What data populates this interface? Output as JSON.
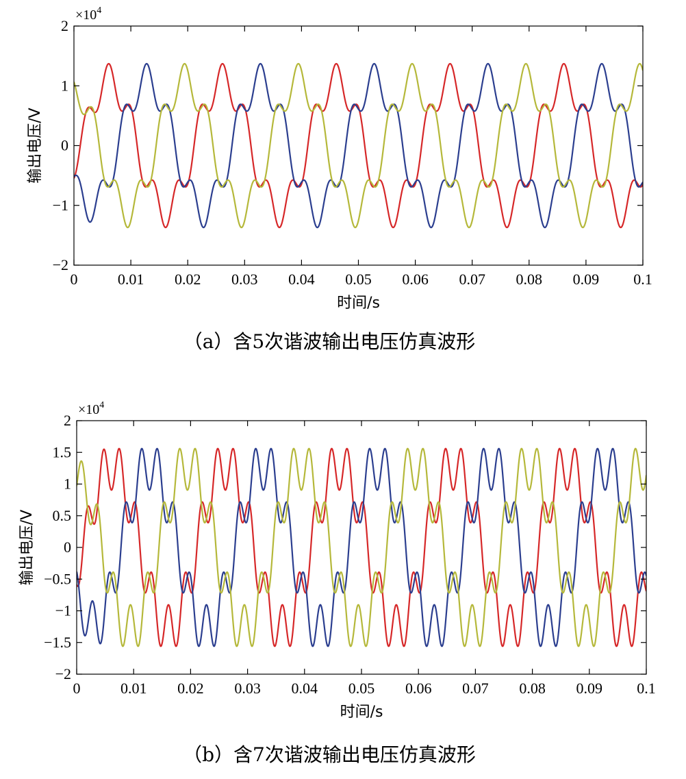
{
  "chart_data": [
    {
      "type": "line",
      "caption": "（a）含5次谐波输出电压仿真波形",
      "xlabel": "时间/s",
      "ylabel": "输出电压/V",
      "y_multiplier": "×10",
      "y_multiplier_exp": "4",
      "xlim": [
        0,
        0.1
      ],
      "ylim": [
        -2,
        2
      ],
      "x_ticks": [
        0,
        0.01,
        0.02,
        0.03,
        0.04,
        0.05,
        0.06,
        0.07,
        0.08,
        0.09,
        0.1
      ],
      "x_tick_labels": [
        "0",
        "0.01",
        "0.02",
        "0.03",
        "0.04",
        "0.05",
        "0.06",
        "0.07",
        "0.08",
        "0.09",
        "0.1"
      ],
      "y_ticks": [
        -2,
        -1,
        0,
        1,
        2
      ],
      "y_tick_labels": [
        "−2",
        "−1",
        "0",
        "1",
        "2"
      ],
      "harmonic_order": 5,
      "harmonic_amplitude": 0.25,
      "peak_value": 1.37,
      "frequency_hz": 50,
      "series": [
        {
          "color": "#d62728",
          "phase_offset_deg": -20
        },
        {
          "color": "#2b3e8f",
          "phase_offset_deg": -140
        },
        {
          "color": "#b5b83a",
          "phase_offset_deg": 100
        }
      ]
    },
    {
      "type": "line",
      "caption": "（b）含7次谐波输出电压仿真波形",
      "xlabel": "时间/s",
      "ylabel": "输出电压/V",
      "y_multiplier": "×10",
      "y_multiplier_exp": "4",
      "xlim": [
        0,
        0.1
      ],
      "ylim": [
        -2,
        2
      ],
      "x_ticks": [
        0,
        0.01,
        0.02,
        0.03,
        0.04,
        0.05,
        0.06,
        0.07,
        0.08,
        0.09,
        0.1
      ],
      "x_tick_labels": [
        "0",
        "0.01",
        "0.02",
        "0.03",
        "0.04",
        "0.05",
        "0.06",
        "0.07",
        "0.08",
        "0.09",
        "0.1"
      ],
      "y_ticks": [
        -2,
        -1.5,
        -1,
        -0.5,
        0,
        0.5,
        1,
        1.5,
        2
      ],
      "y_tick_labels": [
        "−2",
        "−1.5",
        "−1",
        "−0.5",
        "0",
        "0.5",
        "1",
        "1.5",
        "2"
      ],
      "harmonic_order": 7,
      "harmonic_amplitude": 0.3,
      "peak_value": 1.56,
      "frequency_hz": 50,
      "series": [
        {
          "color": "#d62728",
          "phase_offset_deg": -20
        },
        {
          "color": "#2b3e8f",
          "phase_offset_deg": -140
        },
        {
          "color": "#b5b83a",
          "phase_offset_deg": 100
        }
      ]
    }
  ]
}
